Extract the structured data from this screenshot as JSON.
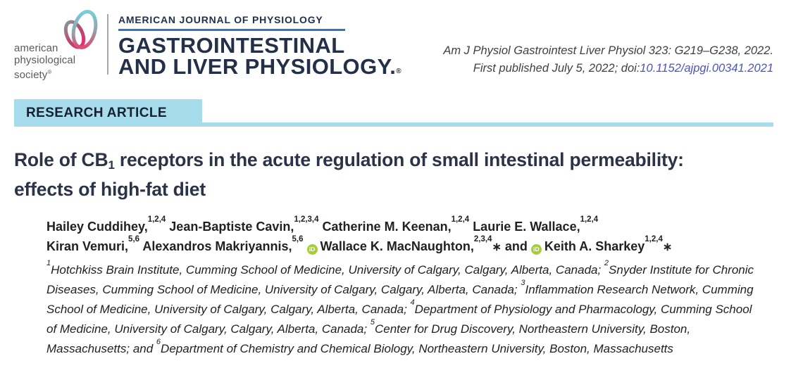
{
  "colors": {
    "navy": "#243048",
    "rule_blue": "#2d78b8",
    "banner_bg": "#a7dced",
    "title_text": "#2c3349",
    "body_text": "#242021",
    "citation_text": "#3f4045",
    "doi_link": "#4d52c4",
    "society_gray": "#5a5b5e",
    "orcid_green": "#a6ce39",
    "logo_pink": "#e0326e",
    "logo_teal": "#79cdd9"
  },
  "icons": {
    "orcid_label": "iD",
    "logo": "aps-dual-loop-mark"
  },
  "header": {
    "society": {
      "line1": "american",
      "line2": "physiological",
      "line3": "society",
      "registered": "®"
    },
    "journal": {
      "series": "AMERICAN JOURNAL OF PHYSIOLOGY",
      "title_line1": "GASTROINTESTINAL",
      "title_line2": "AND LIVER PHYSIOLOGY.",
      "registered": "®"
    },
    "citation": {
      "line1": "Am J Physiol Gastrointest Liver Physiol 323: G219–G238, 2022.",
      "line2_prefix": "First published July 5, 2022; doi:",
      "doi": "10.1152/ajpgi.00341.2021"
    }
  },
  "banner": {
    "label": "RESEARCH ARTICLE"
  },
  "article": {
    "title": {
      "line1_pre": "Role of CB",
      "line1_sub": "1",
      "line1_post": " receptors in the acute regulation of small intestinal permeability:",
      "line2": "effects of high-fat diet"
    },
    "author_lines": [
      [
        {
          "name": "Hailey Cuddihey,",
          "sups": "1,2,4"
        },
        {
          "name": "Jean-Baptiste Cavin,",
          "sups": "1,2,3,4"
        },
        {
          "name": "Catherine M. Keenan,",
          "sups": "1,2,4"
        },
        {
          "name": "Laurie E. Wallace,",
          "sups": "1,2,4"
        }
      ],
      [
        {
          "name": "Kiran Vemuri,",
          "sups": "5,6"
        },
        {
          "name": "Alexandros Makriyannis,",
          "sups": "5,6"
        },
        {
          "orcid": true,
          "name": "Wallace K. MacNaughton,",
          "sups": "2,3,4",
          "asterisk": "∗"
        },
        {
          "lead": "and ",
          "orcid": true,
          "name": "Keith A. Sharkey",
          "sups": "1,2,4",
          "asterisk": "∗"
        }
      ]
    ],
    "affiliations": [
      {
        "sup": "1",
        "text": "Hotchkiss Brain Institute, Cumming School of Medicine, University of Calgary, Calgary, Alberta, Canada; "
      },
      {
        "sup": "2",
        "text": "Snyder Institute for Chronic Diseases, Cumming School of Medicine, University of Calgary, Calgary, Alberta, Canada; "
      },
      {
        "sup": "3",
        "text": "Inflammation Research Network, Cumming School of Medicine, University of Calgary, Calgary, Alberta, Canada; "
      },
      {
        "sup": "4",
        "text": "Department of Physiology and Pharmacology, Cumming School of Medicine, University of Calgary, Calgary, Alberta, Canada; "
      },
      {
        "sup": "5",
        "text": "Center for Drug Discovery, Northeastern University, Boston, Massachusetts; "
      },
      {
        "lead": "and ",
        "sup": "6",
        "text": "Department of Chemistry and Chemical Biology, Northeastern University, Boston, Massachusetts"
      }
    ]
  }
}
